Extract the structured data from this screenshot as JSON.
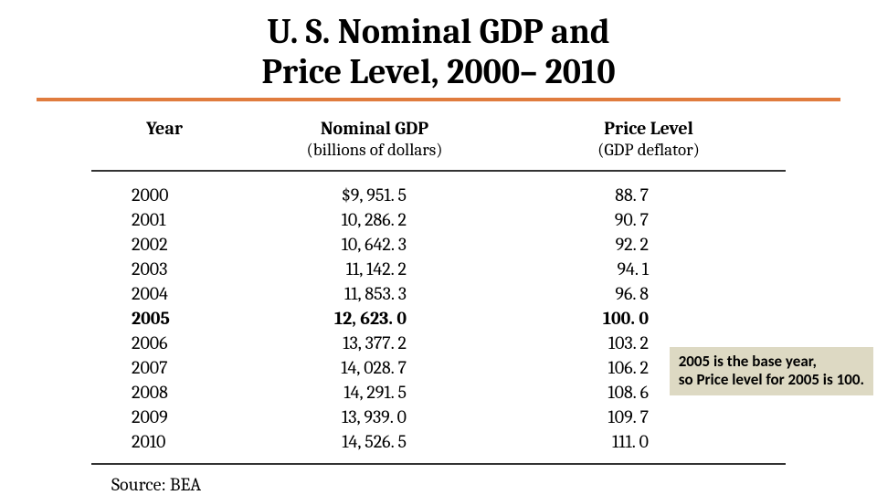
{
  "title": {
    "line1": "U. S. Nominal GDP and",
    "line2": "Price Level, 2000– 2010"
  },
  "accent_color": "#e07c3e",
  "headers": {
    "year": "Year",
    "gdp_top": "Nominal GDP",
    "gdp_sub": "(billions of dollars)",
    "price_top": "Price Level",
    "price_sub": "(GDP deflator)"
  },
  "rows": [
    {
      "year": "2000",
      "gdp": "$9, 951. 5",
      "price": "88. 7",
      "bold": false
    },
    {
      "year": "2001",
      "gdp": "10, 286. 2",
      "price": "90. 7",
      "bold": false
    },
    {
      "year": "2002",
      "gdp": "10, 642. 3",
      "price": "92. 2",
      "bold": false
    },
    {
      "year": "2003",
      "gdp": "11, 142. 2",
      "price": "94. 1",
      "bold": false
    },
    {
      "year": "2004",
      "gdp": "11, 853. 3",
      "price": "96. 8",
      "bold": false
    },
    {
      "year": "2005",
      "gdp": "12, 623. 0",
      "price": "100. 0",
      "bold": true
    },
    {
      "year": "2006",
      "gdp": "13, 377. 2",
      "price": "103. 2",
      "bold": false
    },
    {
      "year": "2007",
      "gdp": "14, 028. 7",
      "price": "106. 2",
      "bold": false
    },
    {
      "year": "2008",
      "gdp": "14, 291. 5",
      "price": "108. 6",
      "bold": false
    },
    {
      "year": "2009",
      "gdp": "13, 939. 0",
      "price": "109. 7",
      "bold": false
    },
    {
      "year": "2010",
      "gdp": "14, 526. 5",
      "price": "111. 0",
      "bold": false
    }
  ],
  "source": "Source: BEA",
  "callout": {
    "line1": "2005 is the base year,",
    "line2": "so Price level for 2005 is 100.",
    "bg_color": "#ddd9c3"
  }
}
